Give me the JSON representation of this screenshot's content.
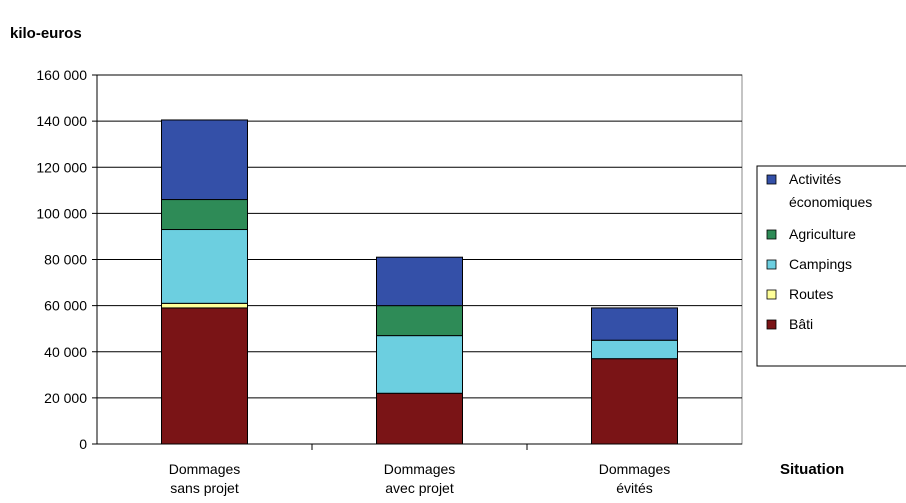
{
  "chart_data": {
    "type": "bar",
    "stacked": true,
    "ylabel": "kilo-euros",
    "xlabel": "Situation",
    "ylim": [
      0,
      160000
    ],
    "yticks": [
      0,
      20000,
      40000,
      60000,
      80000,
      100000,
      120000,
      140000,
      160000
    ],
    "ytick_labels": [
      "0",
      "20 000",
      "40 000",
      "60 000",
      "80 000",
      "100 000",
      "120 000",
      "140 000",
      "160 000"
    ],
    "grid": true,
    "legend_position": "right",
    "categories": [
      [
        "Dommages",
        "sans projet"
      ],
      [
        "Dommages",
        "avec projet"
      ],
      [
        "Dommages",
        "évités"
      ]
    ],
    "series": [
      {
        "name": "Bâti",
        "color": "#7a1416",
        "values": [
          59000,
          22000,
          37000
        ]
      },
      {
        "name": "Routes",
        "color": "#ffff99",
        "values": [
          2000,
          0.5,
          0.5
        ]
      },
      {
        "name": "Campings",
        "color": "#6ccfe0",
        "values": [
          32000,
          25000,
          8000
        ]
      },
      {
        "name": "Agriculture",
        "color": "#2e8b57",
        "values": [
          13000,
          13000,
          0.5
        ]
      },
      {
        "name": "Activités économiques",
        "color": "#3450a8",
        "values": [
          34500,
          21000,
          14000
        ]
      }
    ],
    "legend": [
      {
        "lines": [
          "Activités",
          "économiques"
        ],
        "color": "#3450a8"
      },
      {
        "lines": [
          "Agriculture"
        ],
        "color": "#2e8b57"
      },
      {
        "lines": [
          "Campings"
        ],
        "color": "#6ccfe0"
      },
      {
        "lines": [
          "Routes"
        ],
        "color": "#ffff99"
      },
      {
        "lines": [
          "Bâti"
        ],
        "color": "#7a1416"
      }
    ]
  }
}
